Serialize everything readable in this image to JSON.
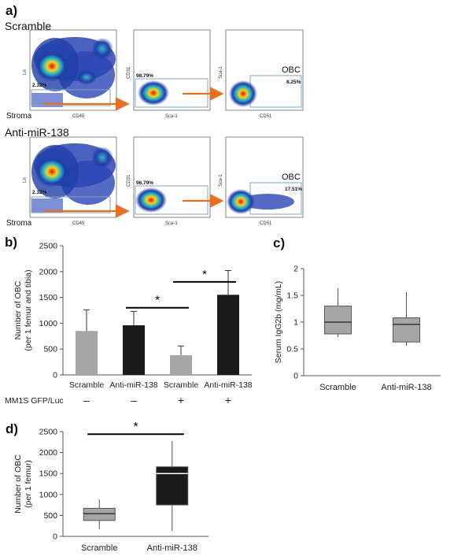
{
  "panel_labels": {
    "a": "a)",
    "b": "b)",
    "c": "c)",
    "d": "d)"
  },
  "panel_a": {
    "groups": [
      {
        "name": "Scramble",
        "plots": [
          {
            "xlabel": "CD45",
            "ylabel": "Ln",
            "gate_value": "2.32%",
            "gate_label": "Stroma"
          },
          {
            "xlabel": "Sca-1",
            "ylabel": "CD31",
            "gate_value": "98.79%"
          },
          {
            "xlabel": "CD51",
            "ylabel": "Sca-1",
            "gate_value": "8.25%",
            "gate_label": "OBC"
          }
        ]
      },
      {
        "name": "Anti-miR-138",
        "plots": [
          {
            "xlabel": "CD45",
            "ylabel": "Ln",
            "gate_value": "2.32%",
            "gate_label": "Stroma"
          },
          {
            "xlabel": "Sca-1",
            "ylabel": "CD31",
            "gate_value": "96.79%"
          },
          {
            "xlabel": "CD51",
            "ylabel": "Sca-1",
            "gate_value": "17.51%",
            "gate_label": "OBC"
          }
        ]
      }
    ],
    "colors": {
      "arrow": "#e8701e",
      "gate": "#7fa3c6"
    }
  },
  "chart_data": [
    {
      "id": "b",
      "type": "bar",
      "ylabel": "Number of OBC\n(per 1 femur and tibia)",
      "ylim": [
        0,
        2500
      ],
      "yticks": [
        0,
        500,
        1000,
        1500,
        2000,
        2500
      ],
      "categories": [
        "Scramble",
        "Anti-miR-138",
        "Scramble",
        "Anti-miR-138"
      ],
      "values": [
        850,
        960,
        380,
        1550
      ],
      "errors": [
        410,
        270,
        180,
        470
      ],
      "bar_colors": [
        "#a6a6a6",
        "#1a1a1a",
        "#a6a6a6",
        "#1a1a1a"
      ],
      "row_label": "MM1S GFP/Luc",
      "row_signs": [
        "–",
        "–",
        "+",
        "+"
      ],
      "significance": [
        {
          "from": 1,
          "to": 2,
          "y": 1300,
          "label": "*"
        },
        {
          "from": 2,
          "to": 3,
          "y": 1800,
          "label": "*"
        }
      ]
    },
    {
      "id": "c",
      "type": "box",
      "ylabel": "Serum IgG2b (mg/mL)",
      "ylim": [
        0,
        2
      ],
      "yticks": [
        "0",
        "0.5",
        "1",
        "1.5",
        "2"
      ],
      "categories": [
        "Scramble",
        "Anti-miR-138"
      ],
      "boxes": [
        {
          "min": 0.72,
          "q1": 0.78,
          "median": 1.0,
          "q3": 1.3,
          "max": 1.63,
          "color": "#a6a6a6",
          "median_color": "#333333"
        },
        {
          "min": 0.56,
          "q1": 0.63,
          "median": 0.96,
          "q3": 1.08,
          "max": 1.56,
          "color": "#a6a6a6",
          "median_color": "#333333"
        }
      ]
    },
    {
      "id": "d",
      "type": "box",
      "ylabel": "Number of OBC\n(per 1 femur)",
      "ylim": [
        0,
        2500
      ],
      "yticks": [
        0,
        500,
        1000,
        1500,
        2000,
        2500
      ],
      "categories": [
        "Scramble",
        "Anti-miR-138"
      ],
      "boxes": [
        {
          "min": 170,
          "q1": 380,
          "median": 540,
          "q3": 670,
          "max": 880,
          "color": "#a6a6a6",
          "median_color": "#333333"
        },
        {
          "min": 130,
          "q1": 750,
          "median": 1500,
          "q3": 1660,
          "max": 2280,
          "color": "#1a1a1a",
          "median_color": "#ffffff"
        }
      ],
      "significance": [
        {
          "from": 0,
          "to": 1,
          "y": 2440,
          "label": "*"
        }
      ]
    }
  ]
}
